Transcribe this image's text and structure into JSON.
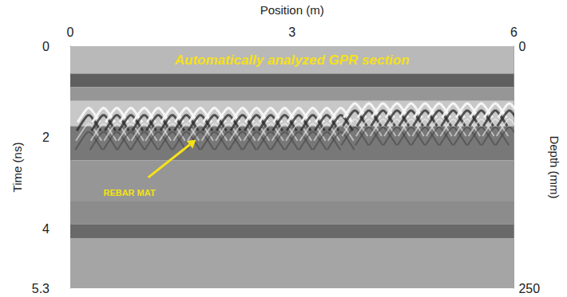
{
  "chart_data": {
    "type": "radargram",
    "x_label": "Position (m)",
    "y_label": "Time (ns)",
    "y2_label": "Depth (mm)",
    "xlim": [
      0,
      6
    ],
    "xticks": [
      0,
      3,
      6
    ],
    "ylim": [
      0,
      5.3
    ],
    "yticks": [
      0,
      2,
      4
    ],
    "y2lim": [
      0,
      250
    ],
    "y2ticks": [
      0,
      250
    ],
    "grid": false,
    "bands": {
      "time": [
        0,
        0.6,
        0.9,
        1.2,
        1.75,
        2.5,
        3.4,
        3.9,
        4.2,
        5.3
      ],
      "gray": [
        185,
        95,
        150,
        200,
        120,
        150,
        140,
        105,
        165
      ]
    },
    "rebar": {
      "marker": "hyperbola",
      "x": [
        0.25,
        0.45,
        0.63,
        0.82,
        1.0,
        1.19,
        1.38,
        1.57,
        1.76,
        1.95,
        2.14,
        2.33,
        2.52,
        2.71,
        2.9,
        3.09,
        3.28,
        3.47,
        3.66,
        3.85,
        4.04,
        4.23,
        4.42,
        4.61,
        4.8,
        4.99,
        5.18,
        5.37,
        5.56,
        5.75,
        5.94
      ],
      "time": [
        1.35,
        1.35,
        1.35,
        1.35,
        1.35,
        1.35,
        1.35,
        1.35,
        1.35,
        1.35,
        1.35,
        1.35,
        1.35,
        1.35,
        1.35,
        1.35,
        1.35,
        1.35,
        1.35,
        1.25,
        1.25,
        1.25,
        1.25,
        1.25,
        1.25,
        1.25,
        1.25,
        1.25,
        1.25,
        1.25,
        1.25
      ]
    },
    "annotations": [
      {
        "text": "Automatically analyzed GPR section",
        "x": 3,
        "y": 0.3
      },
      {
        "text": "REBAR MAT",
        "x": 0.8,
        "y": 3.2,
        "arrow_to": [
          1.7,
          2.05
        ]
      }
    ]
  }
}
